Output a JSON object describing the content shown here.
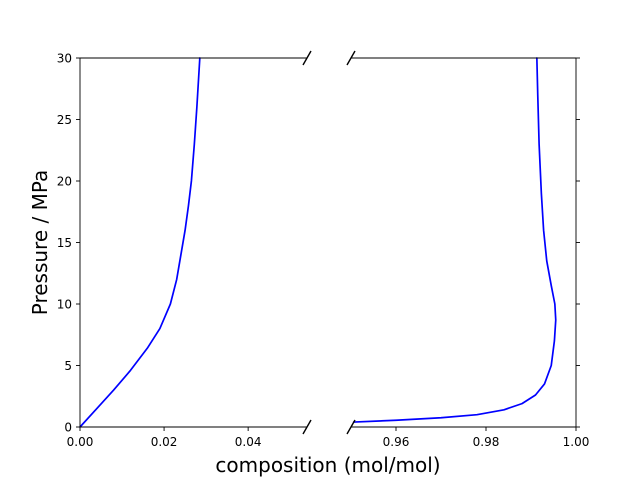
{
  "chart_data": {
    "type": "line",
    "xlabel": "composition (mol/mol)",
    "ylabel": "Pressure / MPa",
    "broken_x_axis": true,
    "grid": false,
    "ylim": [
      0,
      30
    ],
    "y_ticks": [
      0,
      5,
      10,
      15,
      20,
      25,
      30
    ],
    "panels": [
      {
        "xlim": [
          0.0,
          0.054
        ],
        "x_ticks": [
          0.0,
          0.02,
          0.04
        ],
        "x_tick_labels": [
          "0.00",
          "0.02",
          "0.04"
        ],
        "show_y_labels": true
      },
      {
        "xlim": [
          0.95,
          1.0
        ],
        "x_ticks": [
          0.96,
          0.98,
          1.0
        ],
        "x_tick_labels": [
          "0.96",
          "0.98",
          "1.00"
        ],
        "show_y_labels": false
      }
    ],
    "line_color": "#0000ff",
    "series": [
      {
        "points": [
          [
            0.0,
            0.0
          ],
          [
            0.004,
            1.5
          ],
          [
            0.008,
            3.0
          ],
          [
            0.012,
            4.6
          ],
          [
            0.016,
            6.4
          ],
          [
            0.019,
            8.0
          ],
          [
            0.0215,
            10.0
          ],
          [
            0.023,
            12.0
          ],
          [
            0.024,
            14.0
          ],
          [
            0.025,
            16.0
          ],
          [
            0.0258,
            18.0
          ],
          [
            0.0265,
            20.0
          ],
          [
            0.0272,
            23.0
          ],
          [
            0.0278,
            26.0
          ],
          [
            0.0285,
            30.0
          ]
        ]
      },
      {
        "points": [
          [
            0.9506,
            0.4
          ],
          [
            0.96,
            0.55
          ],
          [
            0.97,
            0.75
          ],
          [
            0.978,
            1.0
          ],
          [
            0.984,
            1.4
          ],
          [
            0.988,
            1.9
          ],
          [
            0.991,
            2.6
          ],
          [
            0.993,
            3.5
          ],
          [
            0.9945,
            5.0
          ],
          [
            0.9952,
            7.0
          ],
          [
            0.9955,
            8.7
          ],
          [
            0.9953,
            10.0
          ],
          [
            0.9945,
            11.5
          ],
          [
            0.9935,
            13.5
          ],
          [
            0.9928,
            16.0
          ],
          [
            0.9923,
            19.0
          ],
          [
            0.9918,
            23.0
          ],
          [
            0.9915,
            27.0
          ],
          [
            0.9913,
            30.0
          ]
        ]
      }
    ]
  }
}
